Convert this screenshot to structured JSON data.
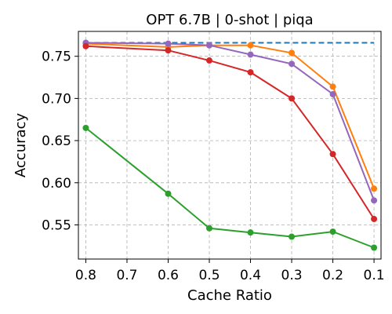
{
  "chart_data": {
    "type": "line",
    "title": "OPT 6.7B | 0-shot | piqa",
    "xlabel": "Cache Ratio",
    "ylabel": "Accuracy",
    "x": [
      0.8,
      0.6,
      0.5,
      0.4,
      0.3,
      0.2,
      0.1
    ],
    "x_ticks": [
      "0.8",
      "0.7",
      "0.6",
      "0.5",
      "0.4",
      "0.3",
      "0.2",
      "0.1"
    ],
    "x_tick_values": [
      0.8,
      0.7,
      0.6,
      0.5,
      0.4,
      0.3,
      0.2,
      0.1
    ],
    "y_ticks": [
      "0.55",
      "0.60",
      "0.65",
      "0.70",
      "0.75"
    ],
    "y_tick_values": [
      0.55,
      0.6,
      0.65,
      0.7,
      0.75
    ],
    "xlim": [
      0.818,
      0.083
    ],
    "ylim": [
      0.5095,
      0.7795
    ],
    "x_reversed": true,
    "grid": true,
    "baseline": {
      "value": 0.766,
      "color": "#1f77b4",
      "style": "dashed"
    },
    "series": [
      {
        "color": "#ff7f0e",
        "values": [
          0.765,
          0.761,
          0.763,
          0.763,
          0.754,
          0.714,
          0.593
        ]
      },
      {
        "color": "#9467bd",
        "values": [
          0.766,
          0.765,
          0.763,
          0.752,
          0.741,
          0.705,
          0.579
        ]
      },
      {
        "color": "#d62728",
        "values": [
          0.762,
          0.757,
          0.745,
          0.731,
          0.7,
          0.634,
          0.557
        ]
      },
      {
        "color": "#2ca02c",
        "values": [
          0.665,
          0.587,
          0.546,
          0.541,
          0.536,
          0.542,
          0.523
        ]
      }
    ]
  }
}
